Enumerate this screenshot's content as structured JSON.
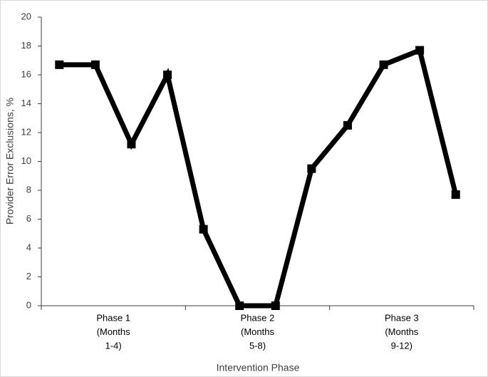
{
  "chart_data": {
    "type": "line",
    "x_label": "Intervention Phase",
    "y_label": "Provider Error Exclusions, %",
    "groups": [
      [
        "Phase 1",
        "(Months",
        "1-4)"
      ],
      [
        "Phase 2",
        "(Months",
        "5-8)"
      ],
      [
        "Phase 3",
        "(Months",
        "9-12)"
      ]
    ],
    "series": [
      {
        "color": "#000000",
        "values": [
          16.7,
          16.7,
          11.2,
          16,
          5.3,
          0,
          0,
          9.5,
          12.5,
          16.7,
          17.7,
          7.7
        ]
      }
    ],
    "ylim": [
      0,
      20
    ],
    "yticks": [
      0,
      2,
      4,
      6,
      8,
      10,
      12,
      14,
      16,
      18,
      20
    ],
    "grid": false
  }
}
